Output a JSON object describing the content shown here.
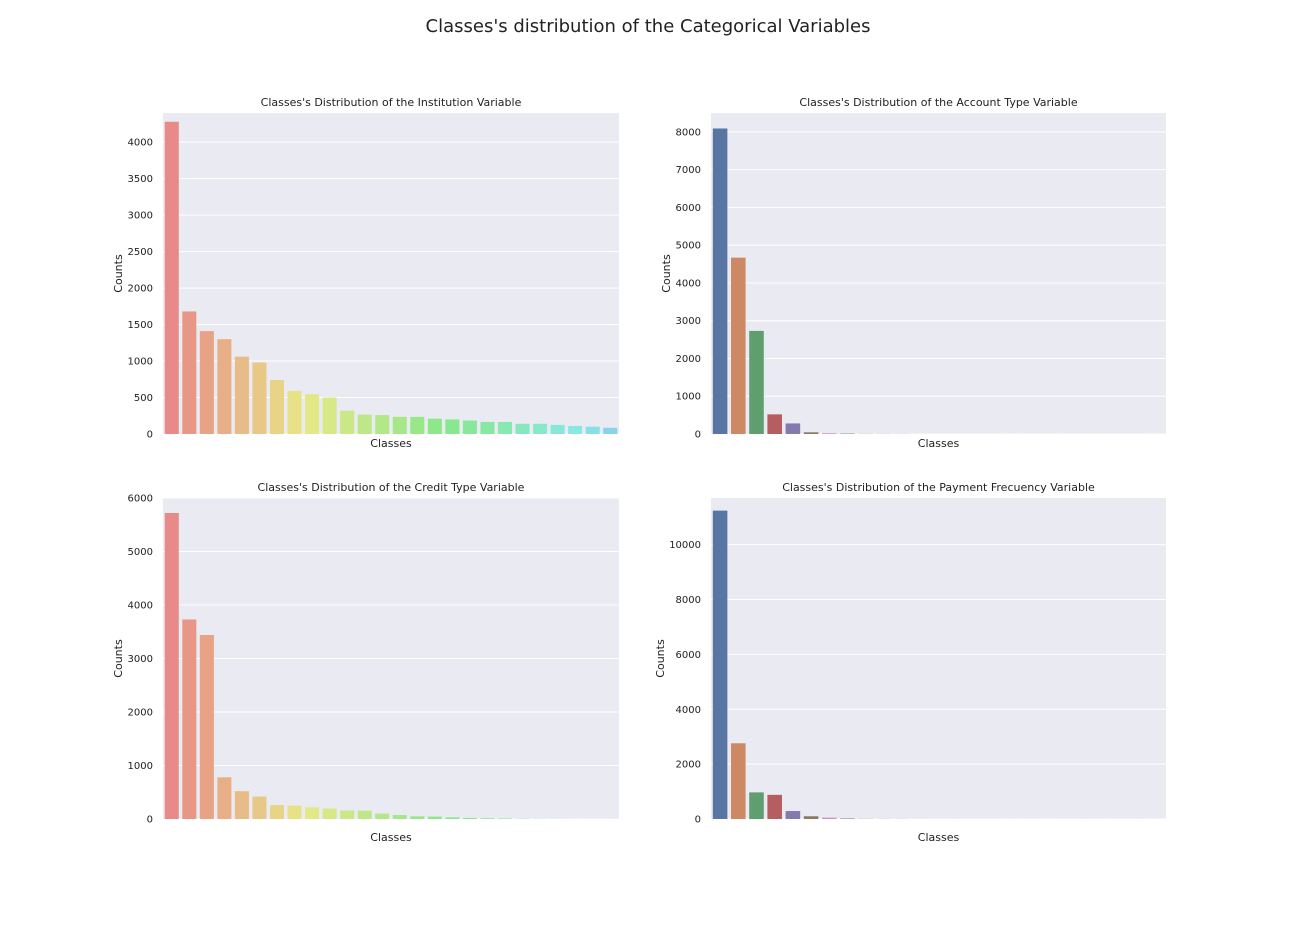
{
  "figure": {
    "title": "Classes's distribution of the Categorical Variables"
  },
  "style": {
    "plot_background": "#eaeaf2",
    "grid_color": "#ffffff",
    "deep_palette": [
      "#4c72b0",
      "#dd8452",
      "#55a868",
      "#c44e52",
      "#8172b3",
      "#937860",
      "#da8bc3",
      "#8c8c8c",
      "#ccb974",
      "#64b5cd"
    ]
  },
  "chart_data": [
    {
      "type": "bar",
      "title": "Classes's Distribution of the Institution Variable",
      "xlabel": "Classes",
      "ylabel": "Counts",
      "ylim": [
        0,
        4400
      ],
      "yticks": [
        0,
        500,
        1000,
        1500,
        2000,
        2500,
        3000,
        3500,
        4000
      ],
      "palette": "husl",
      "values": [
        4280,
        1680,
        1410,
        1300,
        1060,
        980,
        740,
        590,
        545,
        500,
        320,
        265,
        260,
        235,
        235,
        210,
        200,
        185,
        165,
        165,
        140,
        140,
        125,
        110,
        100,
        85
      ]
    },
    {
      "type": "bar",
      "title": "Classes's Distribution of the Account Type Variable",
      "xlabel": "Classes",
      "ylabel": "Counts",
      "ylim": [
        0,
        8500
      ],
      "yticks": [
        0,
        1000,
        2000,
        3000,
        4000,
        5000,
        6000,
        7000,
        8000
      ],
      "palette": "deep",
      "values": [
        8090,
        4670,
        2730,
        520,
        280,
        45,
        20,
        12,
        6,
        4,
        2,
        1,
        1,
        1,
        1,
        1,
        1,
        1,
        1,
        1,
        1,
        1,
        1,
        1
      ]
    },
    {
      "type": "bar",
      "title": "Classes's Distribution of the Credit Type Variable",
      "xlabel": "Classes",
      "ylabel": "Counts",
      "ylim": [
        0,
        6000
      ],
      "yticks": [
        0,
        1000,
        2000,
        3000,
        4000,
        5000,
        6000
      ],
      "palette": "husl",
      "values": [
        5720,
        3730,
        3440,
        780,
        520,
        420,
        260,
        250,
        220,
        195,
        160,
        155,
        100,
        75,
        50,
        45,
        30,
        20,
        15,
        10,
        5,
        3,
        2,
        1,
        1,
        1
      ]
    },
    {
      "type": "bar",
      "title": "Classes's Distribution of the Payment Frecuency Variable",
      "xlabel": "Classes",
      "ylabel": "Counts",
      "ylim": [
        0,
        11700
      ],
      "yticks": [
        0,
        2000,
        4000,
        6000,
        8000,
        10000
      ],
      "palette": "deep",
      "values": [
        11240,
        2760,
        970,
        880,
        290,
        100,
        50,
        20,
        10,
        5,
        3,
        2,
        1,
        1,
        1,
        1,
        1,
        1,
        1,
        1,
        1,
        1,
        1,
        1
      ]
    }
  ]
}
